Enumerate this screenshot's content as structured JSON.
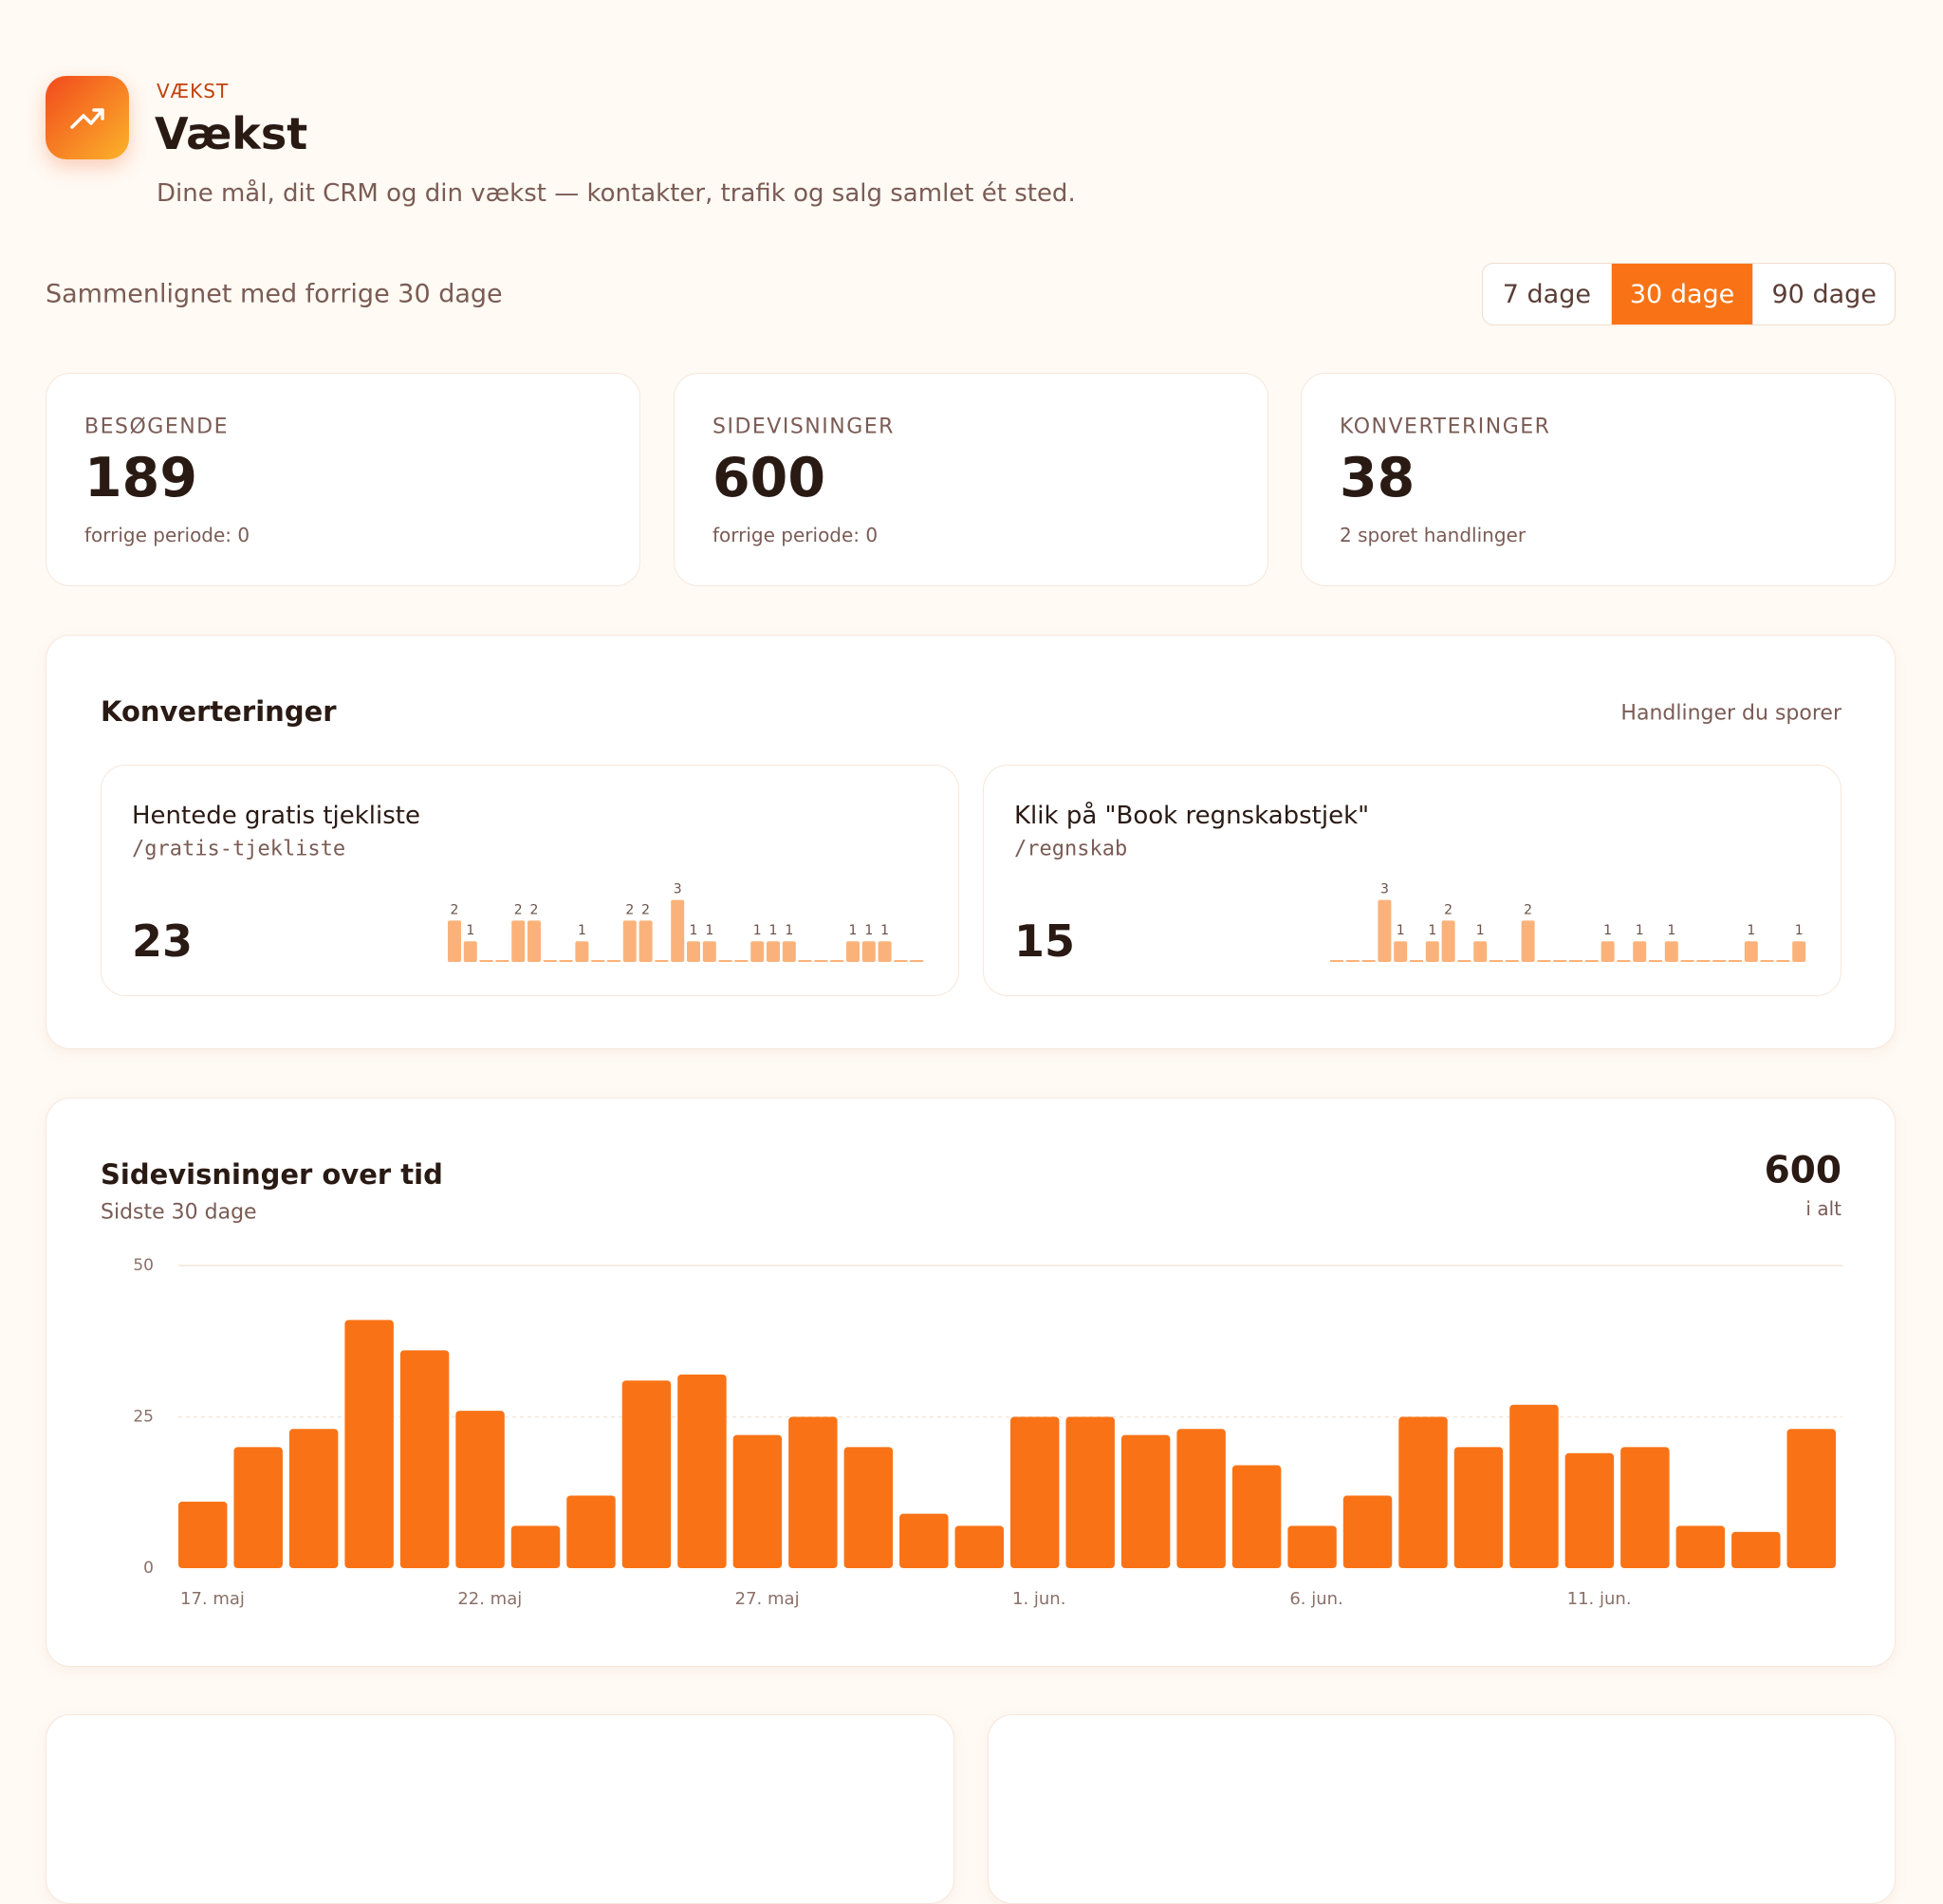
{
  "header": {
    "eyebrow": "VÆKST",
    "title": "Vækst",
    "subtitle": "Dine mål, dit CRM og din vækst — kontakter, trafik og salg samlet ét sted."
  },
  "comparison": "Sammenlignet med forrige 30 dage",
  "range_tabs": {
    "options": [
      "7 dage",
      "30 dage",
      "90 dage"
    ],
    "active": 1
  },
  "stats": [
    {
      "label": "BESØGENDE",
      "value": 189,
      "note": "forrige periode: 0"
    },
    {
      "label": "SIDEVISNINGER",
      "value": 600,
      "note": "forrige periode: 0"
    },
    {
      "label": "KONVERTERINGER",
      "value": 38,
      "note": "2 sporet handlinger"
    }
  ],
  "conversions": {
    "title": "Konverteringer",
    "hint": "Handlinger du sporer",
    "items": [
      {
        "name": "Hentede gratis tjekliste",
        "path": "/gratis-tjekliste",
        "total": 23,
        "chart_data": {
          "type": "bar",
          "color": "#fbb27a",
          "values": [
            2,
            1,
            0,
            0,
            2,
            2,
            0,
            0,
            1,
            0,
            0,
            2,
            2,
            0,
            3,
            1,
            1,
            0,
            0,
            1,
            1,
            1,
            0,
            0,
            0,
            1,
            1,
            1,
            0,
            0
          ]
        }
      },
      {
        "name": "Klik på \"Book regnskabstjek\"",
        "path": "/regnskab",
        "total": 15,
        "chart_data": {
          "type": "bar",
          "color": "#fbb27a",
          "values": [
            0,
            0,
            0,
            3,
            1,
            0,
            1,
            2,
            0,
            1,
            0,
            0,
            2,
            0,
            0,
            0,
            0,
            1,
            0,
            1,
            0,
            1,
            0,
            0,
            0,
            0,
            1,
            0,
            0,
            1
          ]
        }
      }
    ]
  },
  "pageviews": {
    "title": "Sidevisninger over tid",
    "subtitle": "Sidste 30 dage",
    "total": 600,
    "total_label": "i alt",
    "chart_data": {
      "type": "bar",
      "color": "#f97316",
      "categories": [
        "17. maj",
        null,
        null,
        null,
        null,
        "22. maj",
        null,
        null,
        null,
        null,
        "27. maj",
        null,
        null,
        null,
        null,
        "1. jun.",
        null,
        null,
        null,
        null,
        "6. jun.",
        null,
        null,
        null,
        null,
        "11. jun.",
        null,
        null,
        null,
        null
      ],
      "values": [
        11,
        20,
        23,
        41,
        36,
        26,
        7,
        12,
        31,
        32,
        22,
        25,
        20,
        9,
        7,
        25,
        25,
        22,
        23,
        17,
        7,
        12,
        25,
        20,
        27,
        19,
        20,
        7,
        6,
        23
      ],
      "ylim": [
        0,
        50
      ],
      "yticks": [
        0,
        25,
        50
      ],
      "grid": true
    }
  }
}
